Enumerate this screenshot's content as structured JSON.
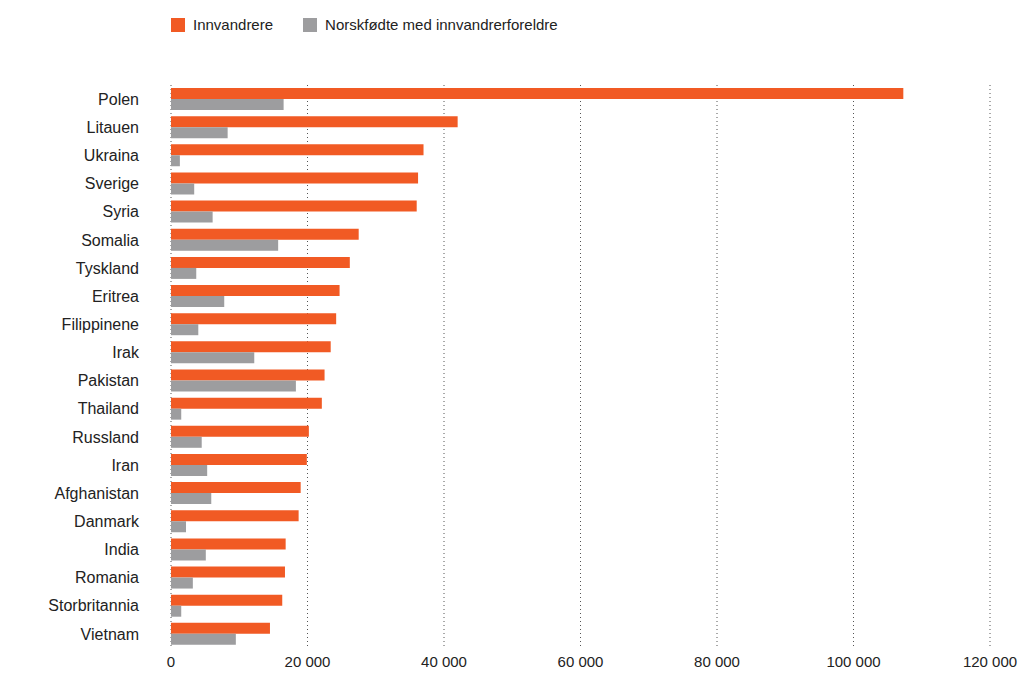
{
  "chart_data": {
    "type": "bar",
    "orientation": "horizontal",
    "grid": true,
    "legend": "upper-left",
    "categories": [
      "Polen",
      "Litauen",
      "Ukraina",
      "Sverige",
      "Syria",
      "Somalia",
      "Tyskland",
      "Eritrea",
      "Filippinene",
      "Irak",
      "Pakistan",
      "Thailand",
      "Russland",
      "Iran",
      "Afghanistan",
      "Danmark",
      "India",
      "Romania",
      "Storbritannia",
      "Vietnam"
    ],
    "series": [
      {
        "name": "Innvandrere",
        "color": "#f15a24",
        "values": [
          107300,
          42000,
          37000,
          36200,
          36000,
          27500,
          26200,
          24700,
          24200,
          23400,
          22500,
          22100,
          20200,
          19900,
          19000,
          18700,
          16800,
          16700,
          16300,
          14500
        ]
      },
      {
        "name": "Norskfødte med innvandrerforeldre",
        "color": "#9d9d9f",
        "values": [
          16500,
          8300,
          1300,
          3400,
          6100,
          15700,
          3700,
          7800,
          4000,
          12200,
          18300,
          1500,
          4500,
          5300,
          5900,
          2200,
          5100,
          3200,
          1500,
          9500
        ]
      }
    ],
    "xlim": [
      0,
      120000
    ],
    "xticks": [
      0,
      {
        "value": 20000,
        "label": "20 000"
      },
      {
        "value": 40000,
        "label": "40 000"
      },
      {
        "value": 60000,
        "label": "60 000"
      },
      {
        "value": 80000,
        "label": "80 000"
      },
      {
        "value": 100000,
        "label": "100 000"
      },
      {
        "value": 120000,
        "label": "120 000"
      }
    ]
  }
}
